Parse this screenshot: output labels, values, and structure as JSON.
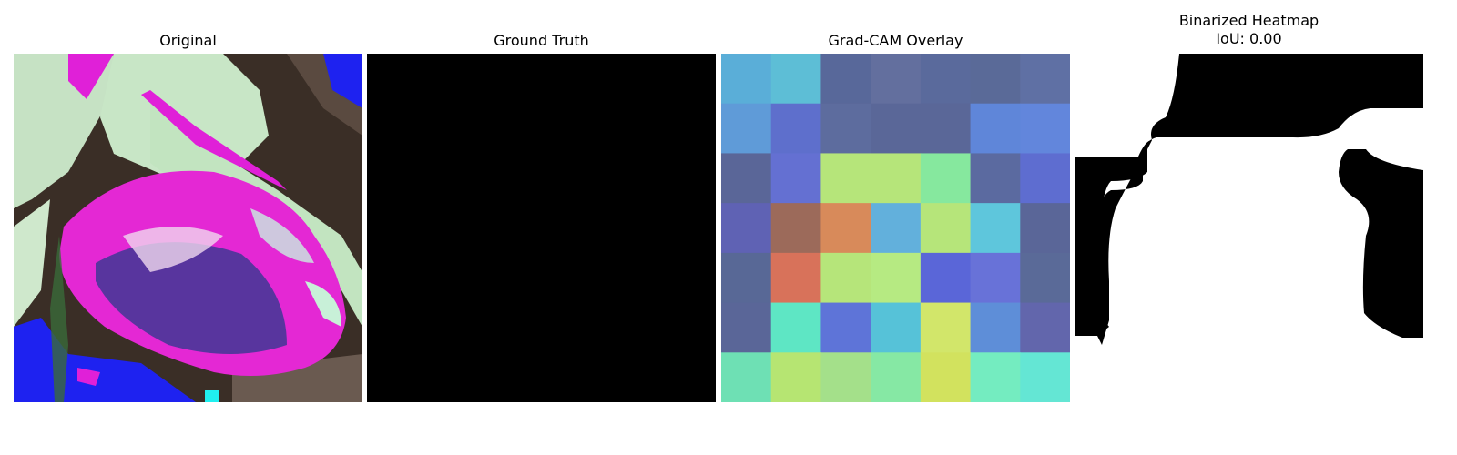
{
  "panels": {
    "original": {
      "title": "Original"
    },
    "ground_truth": {
      "title": "Ground Truth"
    },
    "gradcam": {
      "title": "Grad-CAM Overlay",
      "colors": [
        [
          "#5aaed8",
          "#5dbed6",
          "#58689a",
          "#636f9e",
          "#5a6a9c",
          "#5a6a98",
          "#5f70a4"
        ],
        [
          "#5f9bd8",
          "#5e6fcc",
          "#5d6c9e",
          "#5a6798",
          "#5a6798",
          "#5f86d9",
          "#6286dc"
        ],
        [
          "#5a6698",
          "#6470d2",
          "#b6e57a",
          "#b6e57a",
          "#86e89e",
          "#5b6aa0",
          "#5e6dd0"
        ],
        [
          "#5f62b4",
          "#9c6a5a",
          "#d88a5a",
          "#62b0dc",
          "#b6e57a",
          "#5ec6dc",
          "#5a6698"
        ],
        [
          "#586896",
          "#d8725a",
          "#b6e57a",
          "#b6ea82",
          "#5a66d8",
          "#6872d8",
          "#5a6a98"
        ],
        [
          "#5a6698",
          "#5ee6c4",
          "#5e74d8",
          "#56c2d8",
          "#d2e66a",
          "#5e8ed8",
          "#6266ac"
        ],
        [
          "#6ee0b4",
          "#b6e572",
          "#a4e08a",
          "#86e8a4",
          "#d2e25e",
          "#74ecc0",
          "#64e6d4"
        ]
      ]
    },
    "binarized": {
      "title": "Binarized Heatmap\nIoU: 0.00"
    }
  },
  "figure_colors": {
    "background": "#ffffff",
    "mask_on": "#ffffff",
    "mask_off": "#000000"
  }
}
